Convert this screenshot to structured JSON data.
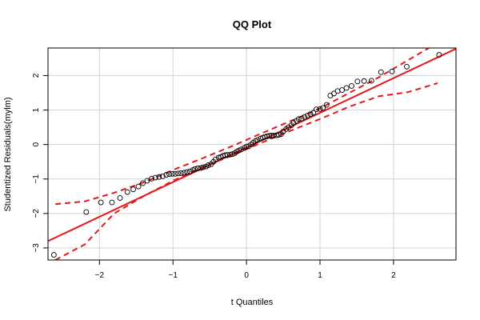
{
  "chart_data": {
    "type": "scatter",
    "title": "QQ Plot",
    "xlabel": "t Quantiles",
    "ylabel": "Studentized Residuals(mylm)",
    "xlim": [
      -2.7,
      2.85
    ],
    "ylim": [
      -3.35,
      2.8
    ],
    "x_ticks": [
      -2,
      -1,
      0,
      1,
      2
    ],
    "y_ticks": [
      -3,
      -2,
      -1,
      0,
      1,
      2
    ],
    "x_tick_labels": [
      "−2",
      "−1",
      "0",
      "1",
      "2"
    ],
    "y_tick_labels": [
      "−3",
      "−2",
      "−1",
      "0",
      "1",
      "2"
    ],
    "grid": true,
    "colors": {
      "points": "#000000",
      "line": "#e31a1c",
      "grid": "#d3d3d3",
      "frame": "#000000"
    },
    "reference_line": {
      "x": [
        -2.7,
        2.85
      ],
      "y": [
        -2.8,
        2.78
      ]
    },
    "confidence_band": {
      "upper": {
        "x": [
          -2.6,
          -2.2,
          -1.8,
          -1.4,
          -1.0,
          -0.6,
          -0.2,
          0.2,
          0.6,
          1.0,
          1.4,
          1.8,
          2.2,
          2.6
        ],
        "y": [
          -1.73,
          -1.65,
          -1.4,
          -1.1,
          -0.74,
          -0.4,
          -0.05,
          0.32,
          0.68,
          1.05,
          1.5,
          1.95,
          2.45,
          2.95
        ]
      },
      "lower": {
        "x": [
          -2.6,
          -2.2,
          -1.8,
          -1.4,
          -1.0,
          -0.6,
          -0.2,
          0.2,
          0.6,
          1.0,
          1.4,
          1.8,
          2.2,
          2.6
        ],
        "y": [
          -3.35,
          -2.9,
          -2.0,
          -1.5,
          -1.05,
          -0.66,
          -0.32,
          0.05,
          0.4,
          0.74,
          1.1,
          1.4,
          1.52,
          1.78
        ]
      }
    },
    "points": {
      "x": [
        -2.62,
        -2.18,
        -1.98,
        -1.83,
        -1.72,
        -1.62,
        -1.54,
        -1.47,
        -1.41,
        -1.35,
        -1.29,
        -1.24,
        -1.19,
        -1.14,
        -1.09,
        -1.05,
        -1.01,
        -0.97,
        -0.93,
        -0.89,
        -0.85,
        -0.81,
        -0.77,
        -0.73,
        -0.7,
        -0.66,
        -0.62,
        -0.59,
        -0.55,
        -0.52,
        -0.48,
        -0.45,
        -0.42,
        -0.38,
        -0.35,
        -0.32,
        -0.29,
        -0.26,
        -0.22,
        -0.19,
        -0.16,
        -0.13,
        -0.1,
        -0.07,
        -0.03,
        0.0,
        0.03,
        0.06,
        0.09,
        0.12,
        0.15,
        0.19,
        0.22,
        0.25,
        0.28,
        0.31,
        0.34,
        0.37,
        0.41,
        0.44,
        0.47,
        0.5,
        0.54,
        0.57,
        0.61,
        0.64,
        0.68,
        0.71,
        0.75,
        0.79,
        0.83,
        0.87,
        0.91,
        0.95,
        1.0,
        1.04,
        1.09,
        1.14,
        1.19,
        1.24,
        1.3,
        1.36,
        1.43,
        1.51,
        1.6,
        1.7,
        1.83,
        1.98,
        2.18,
        2.62
      ],
      "y": [
        -3.2,
        -1.96,
        -1.68,
        -1.68,
        -1.55,
        -1.38,
        -1.3,
        -1.22,
        -1.12,
        -1.05,
        -0.99,
        -0.96,
        -0.94,
        -0.92,
        -0.88,
        -0.86,
        -0.85,
        -0.85,
        -0.84,
        -0.83,
        -0.82,
        -0.8,
        -0.78,
        -0.74,
        -0.71,
        -0.69,
        -0.68,
        -0.66,
        -0.64,
        -0.6,
        -0.57,
        -0.5,
        -0.43,
        -0.38,
        -0.36,
        -0.33,
        -0.31,
        -0.3,
        -0.29,
        -0.28,
        -0.25,
        -0.2,
        -0.17,
        -0.14,
        -0.1,
        -0.06,
        -0.05,
        0.0,
        0.05,
        0.1,
        0.13,
        0.17,
        0.2,
        0.22,
        0.24,
        0.25,
        0.26,
        0.26,
        0.27,
        0.28,
        0.3,
        0.38,
        0.45,
        0.5,
        0.56,
        0.63,
        0.68,
        0.74,
        0.75,
        0.8,
        0.84,
        0.88,
        0.92,
        1.02,
        1.03,
        1.06,
        1.15,
        1.42,
        1.48,
        1.55,
        1.58,
        1.64,
        1.7,
        1.83,
        1.84,
        1.85,
        2.1,
        2.12,
        2.26,
        2.6
      ]
    }
  }
}
